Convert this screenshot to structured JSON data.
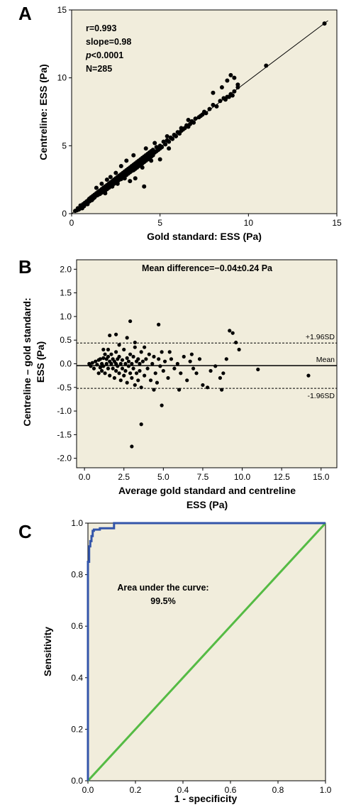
{
  "chart_data": [
    {
      "panel_label": "A",
      "type": "scatter",
      "xlabel": "Gold standard: ESS (Pa)",
      "ylabel": "Centreline: ESS (Pa)",
      "xlim": [
        0,
        15
      ],
      "ylim": [
        0,
        15
      ],
      "xticks": [
        "0",
        "5",
        "10",
        "15"
      ],
      "yticks": [
        "0",
        "5",
        "10",
        "15"
      ],
      "stats": {
        "r": "r=0.993",
        "slope": "slope=0.98",
        "p_italic": "p",
        "p_rest": "<0.0001",
        "n": "N=285"
      },
      "fit_line": {
        "slope": 0.98,
        "intercept": 0.0,
        "x_range": [
          0,
          14.5
        ]
      },
      "points": [
        [
          0.2,
          0.2
        ],
        [
          0.3,
          0.25
        ],
        [
          0.35,
          0.4
        ],
        [
          0.4,
          0.3
        ],
        [
          0.5,
          0.45
        ],
        [
          0.5,
          0.6
        ],
        [
          0.6,
          0.5
        ],
        [
          0.65,
          0.7
        ],
        [
          0.7,
          0.55
        ],
        [
          0.75,
          0.8
        ],
        [
          0.8,
          0.7
        ],
        [
          0.85,
          0.9
        ],
        [
          0.9,
          0.8
        ],
        [
          0.95,
          1.0
        ],
        [
          1.0,
          0.9
        ],
        [
          1.0,
          1.1
        ],
        [
          1.05,
          0.95
        ],
        [
          1.1,
          1.2
        ],
        [
          1.15,
          1.0
        ],
        [
          1.2,
          1.3
        ],
        [
          1.25,
          1.15
        ],
        [
          1.3,
          1.4
        ],
        [
          1.3,
          1.2
        ],
        [
          1.35,
          1.3
        ],
        [
          1.4,
          1.5
        ],
        [
          1.45,
          1.35
        ],
        [
          1.5,
          1.6
        ],
        [
          1.5,
          1.4
        ],
        [
          1.55,
          1.5
        ],
        [
          1.6,
          1.7
        ],
        [
          1.6,
          1.45
        ],
        [
          1.65,
          1.6
        ],
        [
          1.7,
          1.8
        ],
        [
          1.7,
          1.55
        ],
        [
          1.75,
          1.7
        ],
        [
          1.8,
          1.9
        ],
        [
          1.8,
          1.6
        ],
        [
          1.85,
          1.75
        ],
        [
          1.9,
          2.0
        ],
        [
          1.9,
          1.7
        ],
        [
          1.95,
          1.85
        ],
        [
          2.0,
          2.1
        ],
        [
          2.0,
          1.8
        ],
        [
          2.05,
          1.95
        ],
        [
          2.1,
          2.2
        ],
        [
          2.1,
          1.9
        ],
        [
          2.15,
          2.05
        ],
        [
          2.2,
          2.3
        ],
        [
          2.2,
          2.0
        ],
        [
          2.25,
          2.15
        ],
        [
          2.3,
          2.4
        ],
        [
          2.3,
          2.1
        ],
        [
          2.35,
          2.25
        ],
        [
          2.4,
          2.5
        ],
        [
          2.4,
          2.2
        ],
        [
          2.45,
          2.35
        ],
        [
          2.5,
          2.6
        ],
        [
          2.5,
          2.3
        ],
        [
          2.55,
          2.45
        ],
        [
          2.6,
          2.7
        ],
        [
          2.6,
          2.35
        ],
        [
          2.65,
          2.55
        ],
        [
          2.7,
          2.8
        ],
        [
          2.7,
          2.5
        ],
        [
          2.75,
          2.6
        ],
        [
          2.8,
          2.9
        ],
        [
          2.8,
          2.55
        ],
        [
          2.85,
          2.7
        ],
        [
          2.9,
          3.0
        ],
        [
          2.9,
          2.65
        ],
        [
          2.95,
          2.8
        ],
        [
          3.0,
          3.1
        ],
        [
          3.0,
          2.75
        ],
        [
          3.05,
          2.9
        ],
        [
          3.1,
          3.2
        ],
        [
          3.1,
          2.85
        ],
        [
          3.15,
          3.0
        ],
        [
          3.2,
          3.3
        ],
        [
          3.2,
          2.95
        ],
        [
          3.25,
          3.1
        ],
        [
          3.3,
          3.4
        ],
        [
          3.3,
          3.05
        ],
        [
          3.35,
          3.2
        ],
        [
          3.4,
          3.5
        ],
        [
          3.4,
          3.15
        ],
        [
          3.45,
          3.3
        ],
        [
          3.5,
          3.6
        ],
        [
          3.5,
          3.2
        ],
        [
          3.55,
          3.35
        ],
        [
          3.6,
          3.7
        ],
        [
          3.6,
          3.3
        ],
        [
          3.65,
          3.45
        ],
        [
          3.7,
          3.8
        ],
        [
          3.7,
          3.4
        ],
        [
          3.75,
          3.55
        ],
        [
          3.8,
          3.9
        ],
        [
          3.8,
          3.5
        ],
        [
          3.85,
          3.65
        ],
        [
          3.9,
          4.0
        ],
        [
          3.9,
          3.6
        ],
        [
          3.95,
          3.75
        ],
        [
          4.0,
          4.1
        ],
        [
          4.0,
          3.7
        ],
        [
          4.05,
          3.85
        ],
        [
          4.1,
          4.2
        ],
        [
          4.1,
          3.8
        ],
        [
          4.15,
          3.95
        ],
        [
          4.2,
          4.3
        ],
        [
          4.2,
          3.9
        ],
        [
          4.25,
          4.05
        ],
        [
          4.3,
          4.4
        ],
        [
          4.3,
          4.0
        ],
        [
          4.35,
          4.15
        ],
        [
          4.4,
          4.5
        ],
        [
          4.4,
          4.1
        ],
        [
          4.45,
          4.25
        ],
        [
          4.5,
          4.6
        ],
        [
          4.5,
          4.2
        ],
        [
          4.55,
          4.35
        ],
        [
          4.6,
          4.7
        ],
        [
          4.6,
          4.3
        ],
        [
          4.7,
          4.5
        ],
        [
          4.8,
          4.9
        ],
        [
          4.8,
          4.6
        ],
        [
          4.9,
          4.7
        ],
        [
          5.0,
          5.0
        ],
        [
          5.0,
          4.8
        ],
        [
          5.1,
          4.9
        ],
        [
          5.2,
          5.3
        ],
        [
          5.3,
          5.1
        ],
        [
          5.4,
          5.4
        ],
        [
          5.5,
          5.3
        ],
        [
          5.6,
          5.6
        ],
        [
          5.7,
          5.5
        ],
        [
          5.8,
          5.8
        ],
        [
          5.9,
          5.7
        ],
        [
          6.0,
          6.0
        ],
        [
          6.1,
          5.9
        ],
        [
          6.2,
          6.1
        ],
        [
          6.3,
          6.2
        ],
        [
          6.4,
          6.3
        ],
        [
          6.5,
          6.5
        ],
        [
          6.6,
          6.4
        ],
        [
          6.7,
          6.6
        ],
        [
          6.8,
          6.8
        ],
        [
          6.9,
          6.7
        ],
        [
          7.0,
          7.0
        ],
        [
          7.2,
          7.1
        ],
        [
          7.4,
          7.3
        ],
        [
          7.6,
          7.4
        ],
        [
          7.8,
          7.7
        ],
        [
          8.0,
          8.0
        ],
        [
          8.2,
          7.9
        ],
        [
          8.4,
          8.3
        ],
        [
          8.6,
          8.5
        ],
        [
          8.8,
          8.6
        ],
        [
          9.0,
          8.8
        ],
        [
          9.2,
          9.0
        ],
        [
          9.4,
          9.3
        ],
        [
          11.0,
          10.9
        ],
        [
          14.3,
          14.0
        ],
        [
          8.8,
          9.8
        ],
        [
          9.0,
          10.2
        ],
        [
          9.2,
          10.0
        ],
        [
          8.5,
          9.3
        ],
        [
          9.4,
          9.5
        ],
        [
          8.0,
          8.9
        ],
        [
          8.7,
          8.4
        ],
        [
          8.9,
          8.6
        ],
        [
          9.1,
          8.7
        ],
        [
          7.5,
          7.5
        ],
        [
          7.3,
          7.2
        ],
        [
          6.6,
          6.9
        ],
        [
          6.2,
          6.3
        ],
        [
          5.4,
          5.7
        ],
        [
          4.2,
          4.8
        ],
        [
          4.7,
          5.2
        ],
        [
          3.5,
          4.3
        ],
        [
          3.1,
          3.9
        ],
        [
          2.8,
          3.5
        ],
        [
          2.5,
          3.0
        ],
        [
          2.2,
          2.7
        ],
        [
          2.0,
          2.5
        ],
        [
          1.7,
          2.2
        ],
        [
          1.4,
          1.9
        ],
        [
          3.6,
          2.6
        ],
        [
          4.0,
          3.4
        ],
        [
          4.1,
          2.0
        ],
        [
          3.3,
          2.4
        ],
        [
          2.6,
          2.2
        ],
        [
          5.0,
          4.0
        ],
        [
          5.5,
          4.8
        ],
        [
          4.5,
          3.9
        ],
        [
          3.0,
          2.6
        ],
        [
          2.3,
          2.0
        ],
        [
          1.9,
          1.5
        ],
        [
          1.2,
          1.1
        ],
        [
          0.9,
          0.7
        ],
        [
          0.6,
          0.4
        ],
        [
          0.45,
          0.35
        ]
      ]
    },
    {
      "panel_label": "B",
      "type": "scatter",
      "title": "Mean difference=−0.04±0.24 Pa",
      "xlabel_line1": "Average gold standard and centreline",
      "xlabel_line2": "ESS (Pa)",
      "ylabel_line1": "Centreline – gold standard:",
      "ylabel_line2": "ESS  (Pa)",
      "xlim": [
        -0.5,
        16.0
      ],
      "ylim": [
        -2.2,
        2.2
      ],
      "xticks": [
        "0.0",
        "2.5",
        "5.0",
        "7.5",
        "10.0",
        "12.5",
        "15.0"
      ],
      "yticks": [
        "2.0",
        "1.5",
        "1.0",
        "0.5",
        "0.0",
        "-0.5",
        "-1.0",
        "-1.5",
        "-2.0"
      ],
      "mean": -0.04,
      "upper_loa": 0.44,
      "lower_loa": -0.52,
      "labels": {
        "upper": "+1.96SD",
        "mean": "Mean",
        "lower": "-1.96SD"
      },
      "points": [
        [
          0.3,
          0.0
        ],
        [
          0.4,
          -0.05
        ],
        [
          0.5,
          0.02
        ],
        [
          0.6,
          -0.1
        ],
        [
          0.7,
          0.05
        ],
        [
          0.8,
          -0.02
        ],
        [
          0.9,
          0.08
        ],
        [
          1.0,
          -0.08
        ],
        [
          1.0,
          0.1
        ],
        [
          1.1,
          0.0
        ],
        [
          1.1,
          -0.15
        ],
        [
          1.2,
          0.12
        ],
        [
          1.2,
          -0.05
        ],
        [
          1.3,
          0.2
        ],
        [
          1.3,
          -0.2
        ],
        [
          1.4,
          0.0
        ],
        [
          1.4,
          0.1
        ],
        [
          1.5,
          -0.1
        ],
        [
          1.5,
          0.15
        ],
        [
          1.6,
          0.05
        ],
        [
          1.6,
          -0.25
        ],
        [
          1.7,
          0.0
        ],
        [
          1.7,
          0.2
        ],
        [
          1.8,
          -0.1
        ],
        [
          1.8,
          0.1
        ],
        [
          1.9,
          -0.3
        ],
        [
          1.9,
          0.05
        ],
        [
          2.0,
          0.0
        ],
        [
          2.0,
          -0.15
        ],
        [
          2.0,
          0.25
        ],
        [
          2.1,
          0.1
        ],
        [
          2.1,
          -0.05
        ],
        [
          2.2,
          -0.2
        ],
        [
          2.2,
          0.15
        ],
        [
          2.3,
          0.0
        ],
        [
          2.3,
          -0.35
        ],
        [
          2.4,
          0.08
        ],
        [
          2.4,
          -0.1
        ],
        [
          2.5,
          0.3
        ],
        [
          2.5,
          -0.25
        ],
        [
          2.6,
          0.0
        ],
        [
          2.6,
          -0.15
        ],
        [
          2.7,
          0.12
        ],
        [
          2.7,
          -0.4
        ],
        [
          2.8,
          0.05
        ],
        [
          2.8,
          -0.05
        ],
        [
          2.9,
          0.2
        ],
        [
          2.9,
          -0.2
        ],
        [
          3.0,
          0.0
        ],
        [
          3.0,
          -0.3
        ],
        [
          3.1,
          0.15
        ],
        [
          3.1,
          -0.1
        ],
        [
          3.2,
          0.35
        ],
        [
          3.2,
          -0.45
        ],
        [
          3.3,
          0.05
        ],
        [
          3.3,
          -0.2
        ],
        [
          3.4,
          0.1
        ],
        [
          3.4,
          -0.35
        ],
        [
          3.5,
          0.0
        ],
        [
          3.5,
          -0.15
        ],
        [
          3.6,
          0.25
        ],
        [
          3.6,
          -0.5
        ],
        [
          3.7,
          0.05
        ],
        [
          3.8,
          -0.25
        ],
        [
          3.9,
          0.1
        ],
        [
          4.0,
          -0.1
        ],
        [
          4.1,
          0.2
        ],
        [
          4.2,
          -0.35
        ],
        [
          4.3,
          0.0
        ],
        [
          4.4,
          0.15
        ],
        [
          4.5,
          -0.2
        ],
        [
          4.6,
          -0.4
        ],
        [
          4.7,
          0.1
        ],
        [
          4.8,
          -0.05
        ],
        [
          4.9,
          0.25
        ],
        [
          5.0,
          -0.15
        ],
        [
          5.1,
          0.05
        ],
        [
          5.3,
          -0.3
        ],
        [
          5.5,
          0.1
        ],
        [
          5.7,
          -0.1
        ],
        [
          5.9,
          0.0
        ],
        [
          6.1,
          -0.2
        ],
        [
          6.3,
          0.15
        ],
        [
          6.5,
          -0.35
        ],
        [
          6.7,
          0.05
        ],
        [
          6.9,
          -0.1
        ],
        [
          7.1,
          -0.2
        ],
        [
          7.3,
          0.1
        ],
        [
          7.5,
          -0.45
        ],
        [
          7.8,
          -0.5
        ],
        [
          8.0,
          -0.15
        ],
        [
          8.3,
          -0.05
        ],
        [
          8.6,
          -0.3
        ],
        [
          8.8,
          -0.2
        ],
        [
          9.0,
          0.1
        ],
        [
          9.2,
          0.7
        ],
        [
          9.4,
          0.65
        ],
        [
          9.6,
          0.45
        ],
        [
          9.8,
          0.3
        ],
        [
          8.7,
          -0.55
        ],
        [
          11.0,
          -0.12
        ],
        [
          14.2,
          -0.25
        ],
        [
          3.0,
          -1.75
        ],
        [
          3.6,
          -1.28
        ],
        [
          4.9,
          -0.88
        ],
        [
          2.7,
          0.55
        ],
        [
          2.9,
          0.9
        ],
        [
          4.7,
          0.83
        ],
        [
          1.5,
          0.3
        ],
        [
          2.0,
          0.62
        ],
        [
          1.6,
          0.6
        ],
        [
          3.2,
          0.45
        ],
        [
          3.8,
          0.35
        ],
        [
          4.4,
          -0.55
        ],
        [
          5.4,
          0.25
        ],
        [
          6.0,
          -0.55
        ],
        [
          2.2,
          0.4
        ],
        [
          1.2,
          0.3
        ],
        [
          0.9,
          -0.2
        ],
        [
          6.8,
          0.2
        ]
      ]
    },
    {
      "panel_label": "C",
      "type": "line",
      "title": "Area under the curve:",
      "subtitle": "99.5%",
      "xlabel": "1 - specificity",
      "ylabel": "Sensitivity",
      "xlim": [
        0,
        1.0
      ],
      "ylim": [
        0,
        1.0
      ],
      "xticks": [
        "0.0",
        "0.2",
        "0.4",
        "0.6",
        "0.8",
        "1.0"
      ],
      "yticks": [
        "1.0",
        "0.8",
        "0.6",
        "0.4",
        "0.2",
        "0.0"
      ],
      "series": [
        {
          "color": "#3355aa",
          "x": [
            0,
            0,
            0.005,
            0.005,
            0.01,
            0.01,
            0.015,
            0.015,
            0.02,
            0.02,
            0.025,
            0.025,
            0.05,
            0.05,
            0.11,
            0.11,
            1.0
          ],
          "y": [
            0,
            0.85,
            0.85,
            0.91,
            0.91,
            0.93,
            0.93,
            0.95,
            0.95,
            0.97,
            0.97,
            0.975,
            0.975,
            0.98,
            0.98,
            1.0,
            1.0
          ]
        },
        {
          "color": "#55bb44",
          "x": [
            0,
            1.0
          ],
          "y": [
            0,
            1.0
          ]
        }
      ]
    }
  ]
}
